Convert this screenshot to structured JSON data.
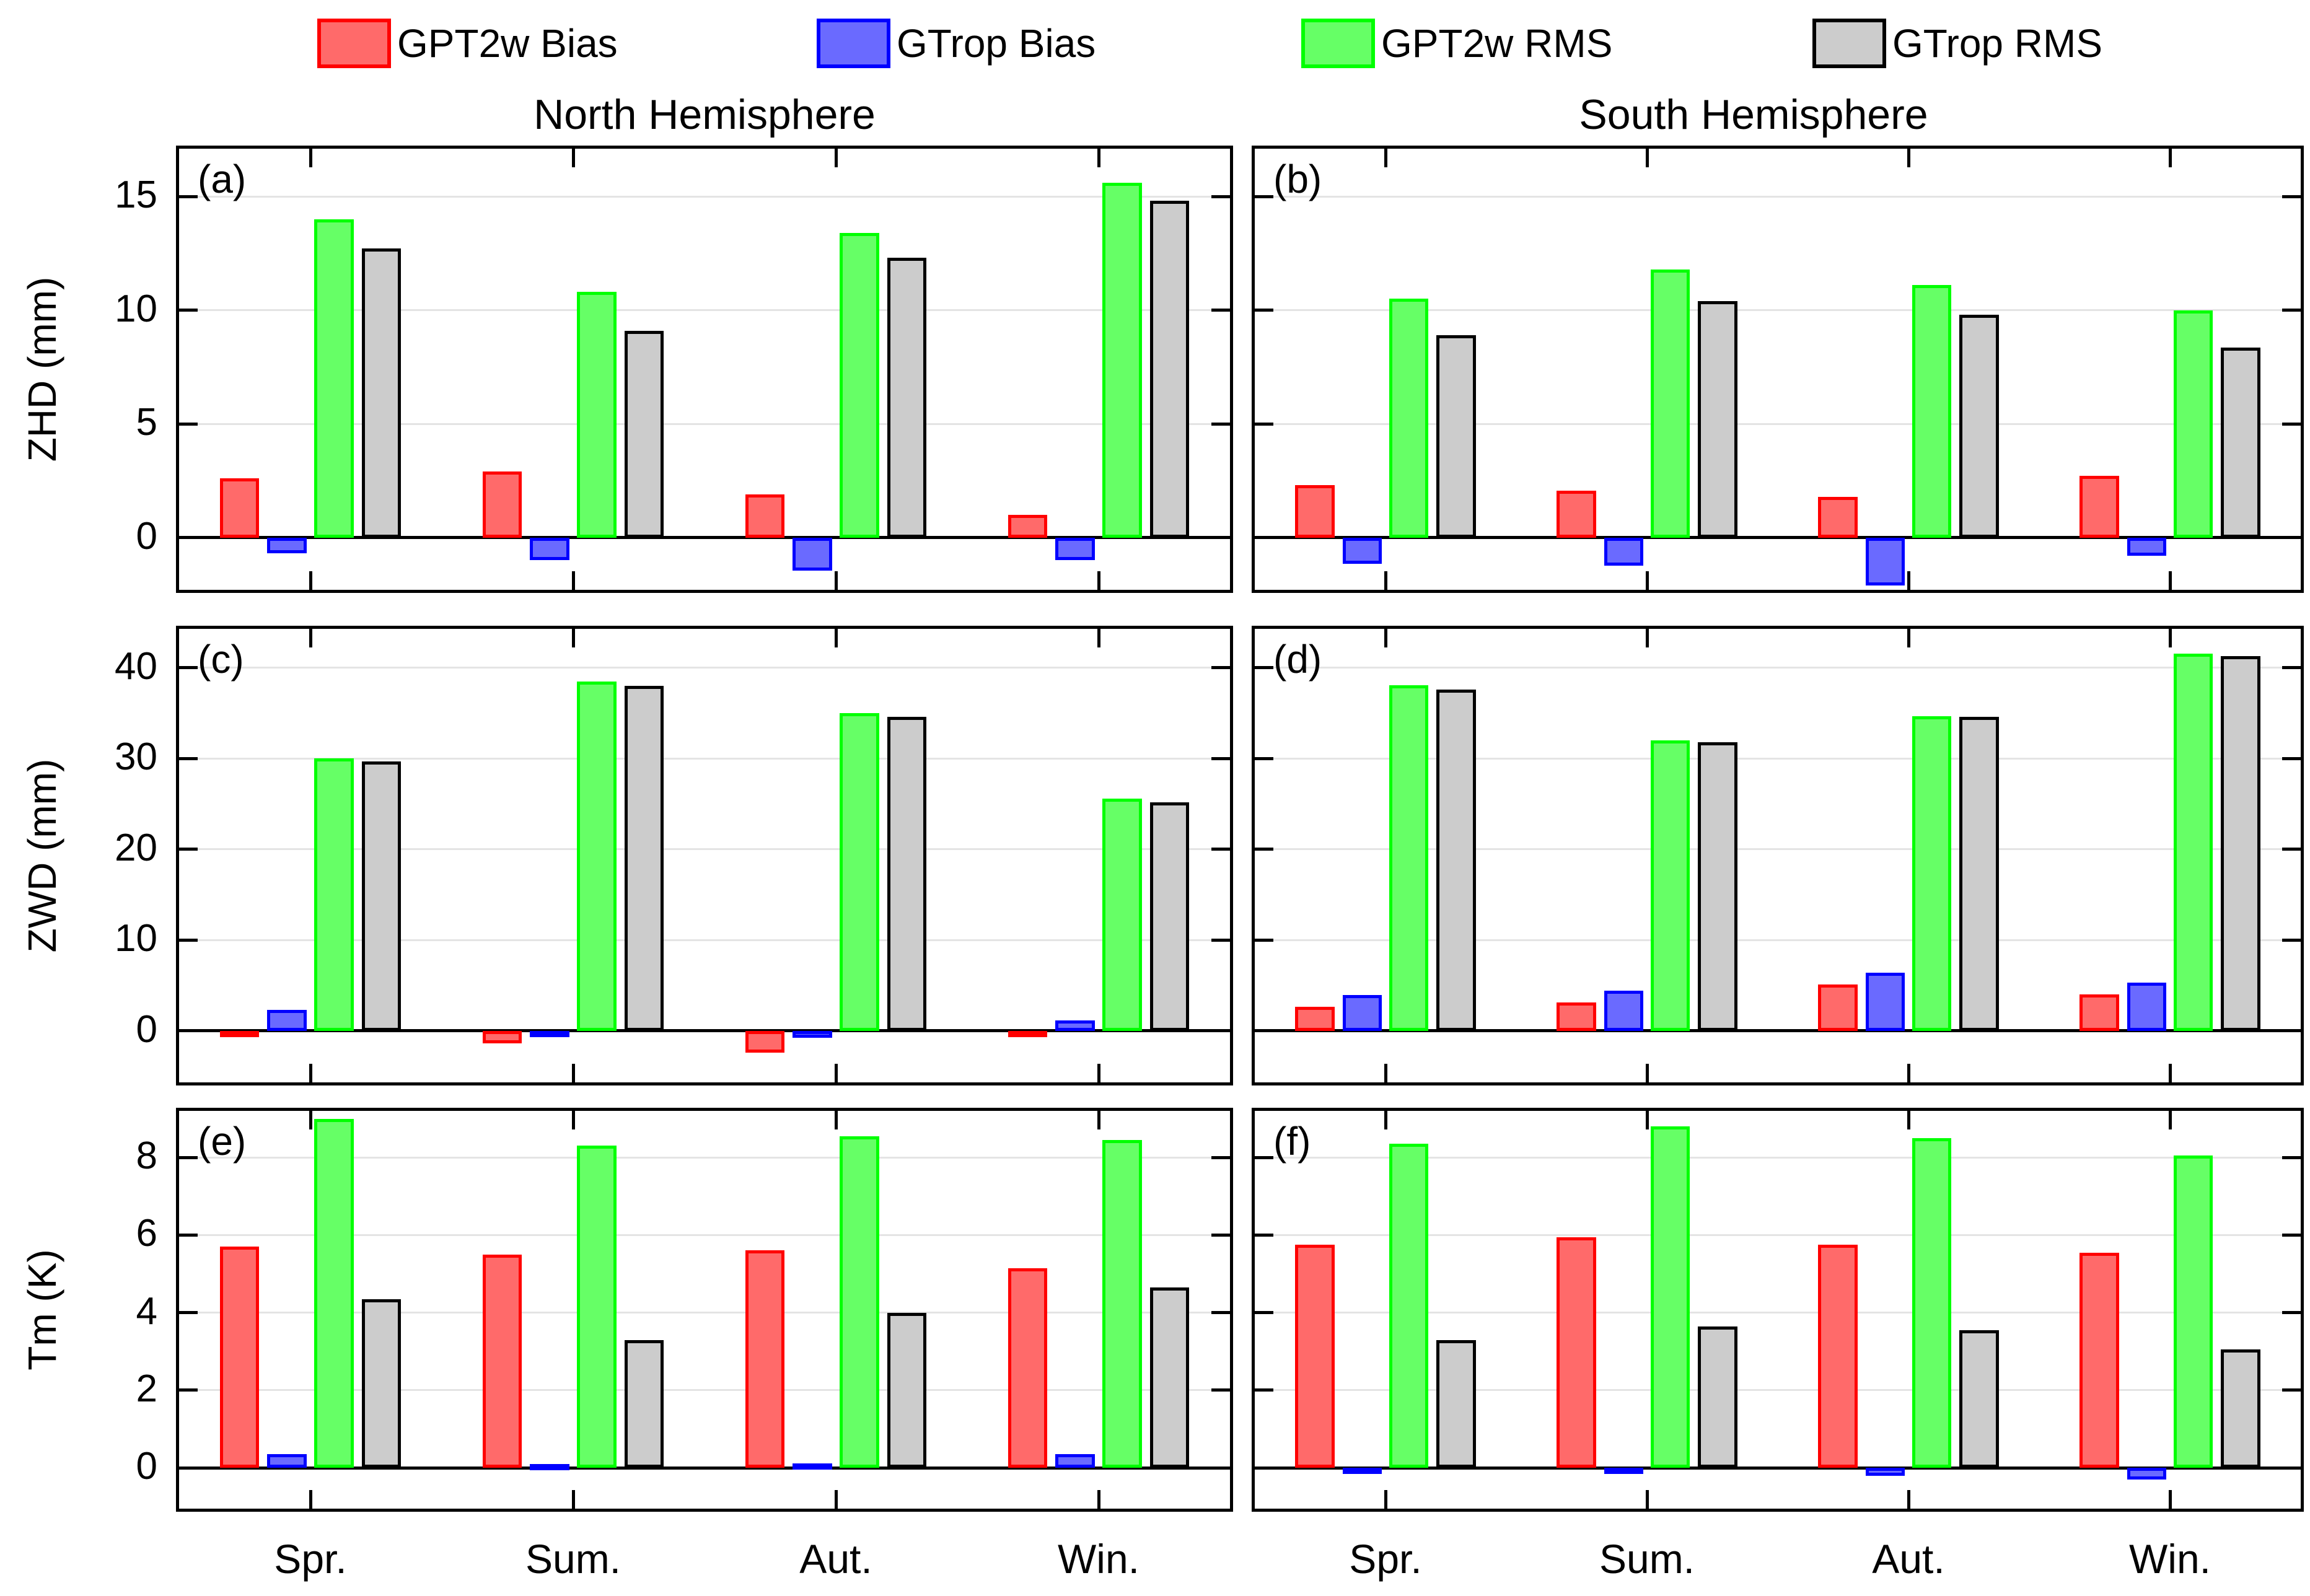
{
  "titles": {
    "left": "North Hemisphere",
    "right": "South Hemisphere"
  },
  "legend": {
    "position": "top",
    "items": [
      {
        "label": "GPT2w Bias",
        "fill": "#FF6A6A",
        "edge": "#FF0000"
      },
      {
        "label": "GTrop Bias",
        "fill": "#6A6AFF",
        "edge": "#0000FF"
      },
      {
        "label": "GPT2w RMS",
        "fill": "#66FF66",
        "edge": "#00FF00"
      },
      {
        "label": "GTrop RMS",
        "fill": "#CCCCCC",
        "edge": "#000000"
      }
    ]
  },
  "chart_data": {
    "type": "bar",
    "grid": true,
    "categories": [
      "Spr.",
      "Sum.",
      "Aut.",
      "Win."
    ],
    "series_names": [
      "GPT2w Bias",
      "GTrop Bias",
      "GPT2w RMS",
      "GTrop RMS"
    ],
    "rows": [
      {
        "ylabel": "ZHD (mm)",
        "yticks": [
          0,
          5,
          10,
          15
        ],
        "ylim": [
          -2.3,
          17.1
        ]
      },
      {
        "ylabel": "ZWD (mm)",
        "yticks": [
          0,
          10,
          20,
          30,
          40
        ],
        "ylim": [
          -5.7,
          44.3
        ]
      },
      {
        "ylabel": "Tm (K)",
        "yticks": [
          0,
          2,
          4,
          6,
          8
        ],
        "ylim": [
          -1.05,
          9.2
        ]
      }
    ],
    "panels": [
      {
        "label": "(a)",
        "row": 0,
        "col": 0,
        "hemisphere": "North",
        "metric": "ZHD",
        "series": [
          {
            "name": "GPT2w Bias",
            "values": [
              2.6,
              2.9,
              1.9,
              1.0
            ]
          },
          {
            "name": "GTrop Bias",
            "values": [
              -0.7,
              -1.0,
              -1.45,
              -1.0
            ]
          },
          {
            "name": "GPT2w RMS",
            "values": [
              14.0,
              10.8,
              13.4,
              15.6
            ]
          },
          {
            "name": "GTrop RMS",
            "values": [
              12.7,
              9.1,
              12.3,
              14.8
            ]
          }
        ]
      },
      {
        "label": "(b)",
        "row": 0,
        "col": 1,
        "hemisphere": "South",
        "metric": "ZHD",
        "series": [
          {
            "name": "GPT2w Bias",
            "values": [
              2.3,
              2.05,
              1.8,
              2.7
            ]
          },
          {
            "name": "GTrop Bias",
            "values": [
              -1.15,
              -1.25,
              -2.1,
              -0.8
            ]
          },
          {
            "name": "GPT2w RMS",
            "values": [
              10.5,
              11.8,
              11.1,
              10.0
            ]
          },
          {
            "name": "GTrop RMS",
            "values": [
              8.9,
              10.4,
              9.8,
              8.35
            ]
          }
        ]
      },
      {
        "label": "(c)",
        "row": 1,
        "col": 0,
        "hemisphere": "North",
        "metric": "ZWD",
        "series": [
          {
            "name": "GPT2w Bias",
            "values": [
              -0.6,
              -1.4,
              -2.4,
              -0.2
            ]
          },
          {
            "name": "GTrop Bias",
            "values": [
              2.3,
              -0.1,
              -0.8,
              1.1
            ]
          },
          {
            "name": "GPT2w RMS",
            "values": [
              30.0,
              38.5,
              35.0,
              25.6
            ]
          },
          {
            "name": "GTrop RMS",
            "values": [
              29.7,
              38.0,
              34.6,
              25.2
            ]
          }
        ]
      },
      {
        "label": "(d)",
        "row": 1,
        "col": 1,
        "hemisphere": "South",
        "metric": "ZWD",
        "series": [
          {
            "name": "GPT2w Bias",
            "values": [
              2.6,
              3.1,
              5.1,
              4.0
            ]
          },
          {
            "name": "GTrop Bias",
            "values": [
              3.9,
              4.4,
              6.4,
              5.3
            ]
          },
          {
            "name": "GPT2w RMS",
            "values": [
              38.1,
              32.0,
              34.7,
              41.6
            ]
          },
          {
            "name": "GTrop RMS",
            "values": [
              37.6,
              31.8,
              34.6,
              41.3
            ]
          }
        ]
      },
      {
        "label": "(e)",
        "row": 2,
        "col": 0,
        "hemisphere": "North",
        "metric": "Tm",
        "series": [
          {
            "name": "GPT2w Bias",
            "values": [
              5.7,
              5.5,
              5.6,
              5.15
            ]
          },
          {
            "name": "GTrop Bias",
            "values": [
              0.35,
              0.1,
              0.12,
              0.35
            ]
          },
          {
            "name": "GPT2w RMS",
            "values": [
              9.0,
              8.3,
              8.55,
              8.45
            ]
          },
          {
            "name": "GTrop RMS",
            "values": [
              4.35,
              3.3,
              4.0,
              4.65
            ]
          }
        ]
      },
      {
        "label": "(f)",
        "row": 2,
        "col": 1,
        "hemisphere": "South",
        "metric": "Tm",
        "series": [
          {
            "name": "GPT2w Bias",
            "values": [
              5.75,
              5.95,
              5.75,
              5.55
            ]
          },
          {
            "name": "GTrop Bias",
            "values": [
              -0.15,
              -0.05,
              -0.2,
              -0.3
            ]
          },
          {
            "name": "GPT2w RMS",
            "values": [
              8.35,
              8.8,
              8.5,
              8.05
            ]
          },
          {
            "name": "GTrop RMS",
            "values": [
              3.3,
              3.65,
              3.55,
              3.05
            ]
          }
        ]
      }
    ]
  }
}
